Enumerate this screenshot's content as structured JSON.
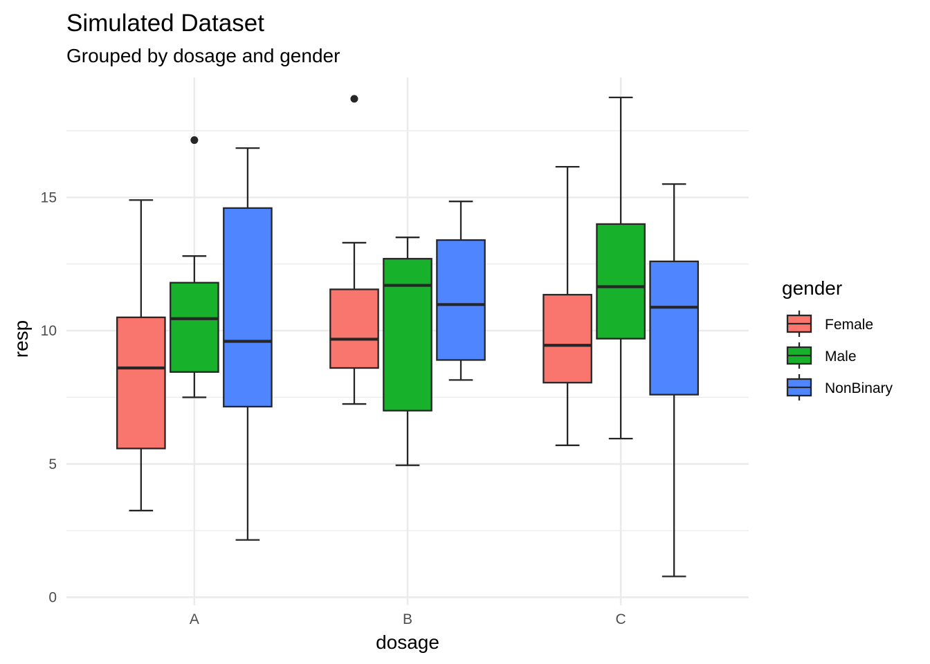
{
  "chart_data": {
    "type": "boxplot",
    "title": "Simulated Dataset",
    "subtitle": "Grouped by dosage and gender",
    "xlabel": "dosage",
    "ylabel": "resp",
    "categories": [
      "A",
      "B",
      "C"
    ],
    "ylim": [
      -0.3,
      19.5
    ],
    "yticks": [
      0,
      5,
      10,
      15
    ],
    "grid": true,
    "legend": {
      "title": "gender",
      "position": "right"
    },
    "series": [
      {
        "name": "Female",
        "color": "#F8766D",
        "boxes": [
          {
            "category": "A",
            "min": 3.25,
            "q1": 5.58,
            "median": 8.6,
            "q3": 10.5,
            "max": 14.9,
            "outliers": []
          },
          {
            "category": "B",
            "min": 7.25,
            "q1": 8.6,
            "median": 9.68,
            "q3": 11.55,
            "max": 13.3,
            "outliers": [
              18.7
            ]
          },
          {
            "category": "C",
            "min": 5.7,
            "q1": 8.05,
            "median": 9.45,
            "q3": 11.35,
            "max": 16.15,
            "outliers": []
          }
        ]
      },
      {
        "name": "Male",
        "color": "#18B12B",
        "boxes": [
          {
            "category": "A",
            "min": 7.5,
            "q1": 8.45,
            "median": 10.45,
            "q3": 11.8,
            "max": 12.8,
            "outliers": [
              17.15
            ]
          },
          {
            "category": "B",
            "min": 4.95,
            "q1": 7.0,
            "median": 11.7,
            "q3": 12.7,
            "max": 13.5,
            "outliers": []
          },
          {
            "category": "C",
            "min": 5.95,
            "q1": 9.7,
            "median": 11.65,
            "q3": 14.0,
            "max": 18.75,
            "outliers": []
          }
        ]
      },
      {
        "name": "NonBinary",
        "color": "#4F86FF",
        "boxes": [
          {
            "category": "A",
            "min": 2.15,
            "q1": 7.15,
            "median": 9.6,
            "q3": 14.6,
            "max": 16.85,
            "outliers": []
          },
          {
            "category": "B",
            "min": 8.15,
            "q1": 8.9,
            "median": 10.98,
            "q3": 13.4,
            "max": 14.85,
            "outliers": []
          },
          {
            "category": "C",
            "min": 0.78,
            "q1": 7.6,
            "median": 10.88,
            "q3": 12.6,
            "max": 15.5,
            "outliers": []
          }
        ]
      }
    ]
  }
}
